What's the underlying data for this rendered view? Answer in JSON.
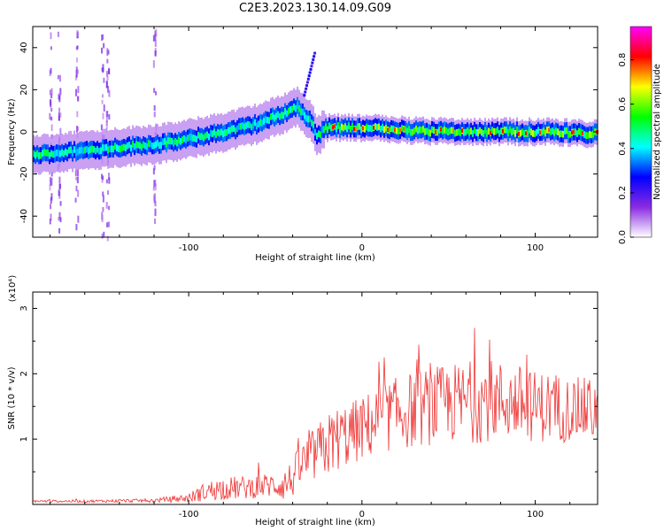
{
  "title": "C2E3.2023.130.14.09.G09",
  "chart_data": [
    {
      "type": "heatmap",
      "xlabel": "Height of straight line (km)",
      "ylabel": "Frequency (Hz)",
      "xlim": [
        -190,
        136
      ],
      "ylim": [
        -50,
        50
      ],
      "xticks": [
        -100,
        0,
        100
      ],
      "yticks": [
        -40,
        -20,
        0,
        20,
        40
      ],
      "colorbar": {
        "label": "Normalized spectral amplitude",
        "range": [
          0.0,
          0.95
        ],
        "ticks": [
          0.0,
          0.2,
          0.4,
          0.6,
          0.8
        ],
        "tick_labels": [
          "0.0",
          "0.2",
          "0.4",
          "0.6",
          "0.8"
        ],
        "colors": [
          "#ffffff",
          "#8a2be2",
          "#0000ff",
          "#00ffff",
          "#00ff00",
          "#ffff00",
          "#ff0000",
          "#ff00ff"
        ]
      },
      "ridge": {
        "x": [
          -190,
          -150,
          -110,
          -80,
          -60,
          -45,
          -38,
          -30,
          -26,
          -22,
          0,
          20,
          50,
          80,
          110,
          136
        ],
        "y": [
          -11,
          -8,
          -5,
          0,
          4,
          9,
          12,
          5,
          -2,
          2,
          2,
          1,
          0,
          0,
          0,
          -1
        ]
      },
      "spike": {
        "x": [
          -34,
          -28
        ],
        "y": [
          18,
          38
        ]
      },
      "vertical_streaks_x": [
        -180,
        -175,
        -165,
        -150,
        -147,
        -120
      ]
    },
    {
      "type": "line",
      "xlabel": "Height of straight line (km)",
      "ylabel": "SNR (10 * v/v)",
      "multiplier": "(x10⁴)",
      "xlim": [
        -190,
        136
      ],
      "ylim": [
        0,
        3.25
      ],
      "xticks": [
        -100,
        0,
        100
      ],
      "yticks": [
        1,
        2,
        3
      ],
      "series": [
        {
          "color": "#ee3333",
          "x": [
            -190,
            -160,
            -120,
            -100,
            -90,
            -80,
            -70,
            -60,
            -50,
            -45,
            -40,
            -35,
            -30,
            -25,
            -20,
            -15,
            -10,
            -5,
            0,
            10,
            20,
            30,
            40,
            50,
            60,
            70,
            80,
            90,
            100,
            110,
            120,
            136
          ],
          "y": [
            0.05,
            0.05,
            0.06,
            0.1,
            0.2,
            0.25,
            0.25,
            0.28,
            0.3,
            0.3,
            0.4,
            0.6,
            0.7,
            0.8,
            0.9,
            1.0,
            1.05,
            1.1,
            1.15,
            1.3,
            1.4,
            1.45,
            1.5,
            1.55,
            1.55,
            1.6,
            1.6,
            1.55,
            1.5,
            1.5,
            1.45,
            1.45
          ],
          "noise": [
            0.02,
            0.02,
            0.03,
            0.07,
            0.15,
            0.18,
            0.18,
            0.18,
            0.2,
            0.25,
            0.3,
            0.35,
            0.4,
            0.45,
            0.5,
            0.5,
            0.5,
            0.5,
            0.5,
            0.55,
            0.55,
            0.6,
            0.6,
            0.6,
            0.65,
            0.65,
            0.6,
            0.6,
            0.55,
            0.55,
            0.5,
            0.5
          ]
        }
      ]
    }
  ]
}
